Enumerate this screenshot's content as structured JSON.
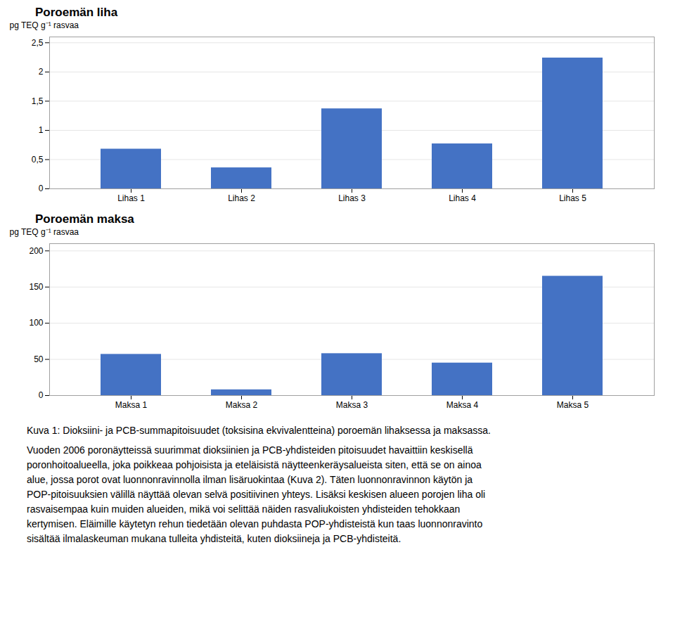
{
  "chart_data": [
    {
      "type": "bar",
      "title": "Poroemän liha",
      "categories": [
        "Lihas 1",
        "Lihas 2",
        "Lihas 3",
        "Lihas 4",
        "Lihas 5"
      ],
      "values": [
        0.68,
        0.36,
        1.37,
        0.77,
        2.24
      ],
      "color": "#4472C4",
      "ylabel": "pg TEQ g⁻¹ rasvaa",
      "ylim": [
        0,
        2.6
      ],
      "yticks": [
        0,
        {
          "value": 0.5,
          "label": "0,5"
        },
        1,
        {
          "value": 1.5,
          "label": "1,5"
        },
        2,
        {
          "value": 2.5,
          "label": "2,5"
        }
      ],
      "grid": true
    },
    {
      "type": "bar",
      "title": "Poroemän maksa",
      "categories": [
        "Maksa 1",
        "Maksa 2",
        "Maksa 3",
        "Maksa 4",
        "Maksa 5"
      ],
      "values": [
        57,
        8,
        58,
        45,
        165
      ],
      "color": "#4472C4",
      "ylabel": "pg TEQ g⁻¹ rasvaa",
      "ylim": [
        0,
        210
      ],
      "yticks": [
        0,
        50,
        100,
        150,
        200
      ],
      "grid": true
    }
  ],
  "caption": "Kuva 1: Dioksiini- ja PCB-summapitoisuudet (toksisina ekvivalentteina) poroemän lihaksessa ja maksassa.",
  "body_text": "Vuoden 2006 poronäytteissä suurimmat dioksiinien ja PCB-yhdisteiden pitoisuudet havaittiin keskisellä\nporonhoitoalueella, joka poikkeaa pohjoisista ja eteläisistä näytteenkeräysalueista siten, että se on ainoa\nalue, jossa porot ovat luonnonravinnolla ilman lisäruokintaa (Kuva 2). Täten luonnonravinnon käytön ja\nPOP-pitoisuuksien välillä näyttää olevan selvä positiivinen yhteys. Lisäksi keskisen alueen porojen liha oli\nrasvaisempaa kuin muiden alueiden, mikä voi selittää näiden rasvaliukoisten yhdisteiden tehokkaan\nkertymisen. Eläimille käytetyn rehun tiedetään olevan puhdasta POP-yhdisteistä kun taas luonnonravinto\nsisältää ilmalaskeuman mukana tulleita yhdisteitä, kuten dioksiineja ja PCB-yhdisteitä."
}
